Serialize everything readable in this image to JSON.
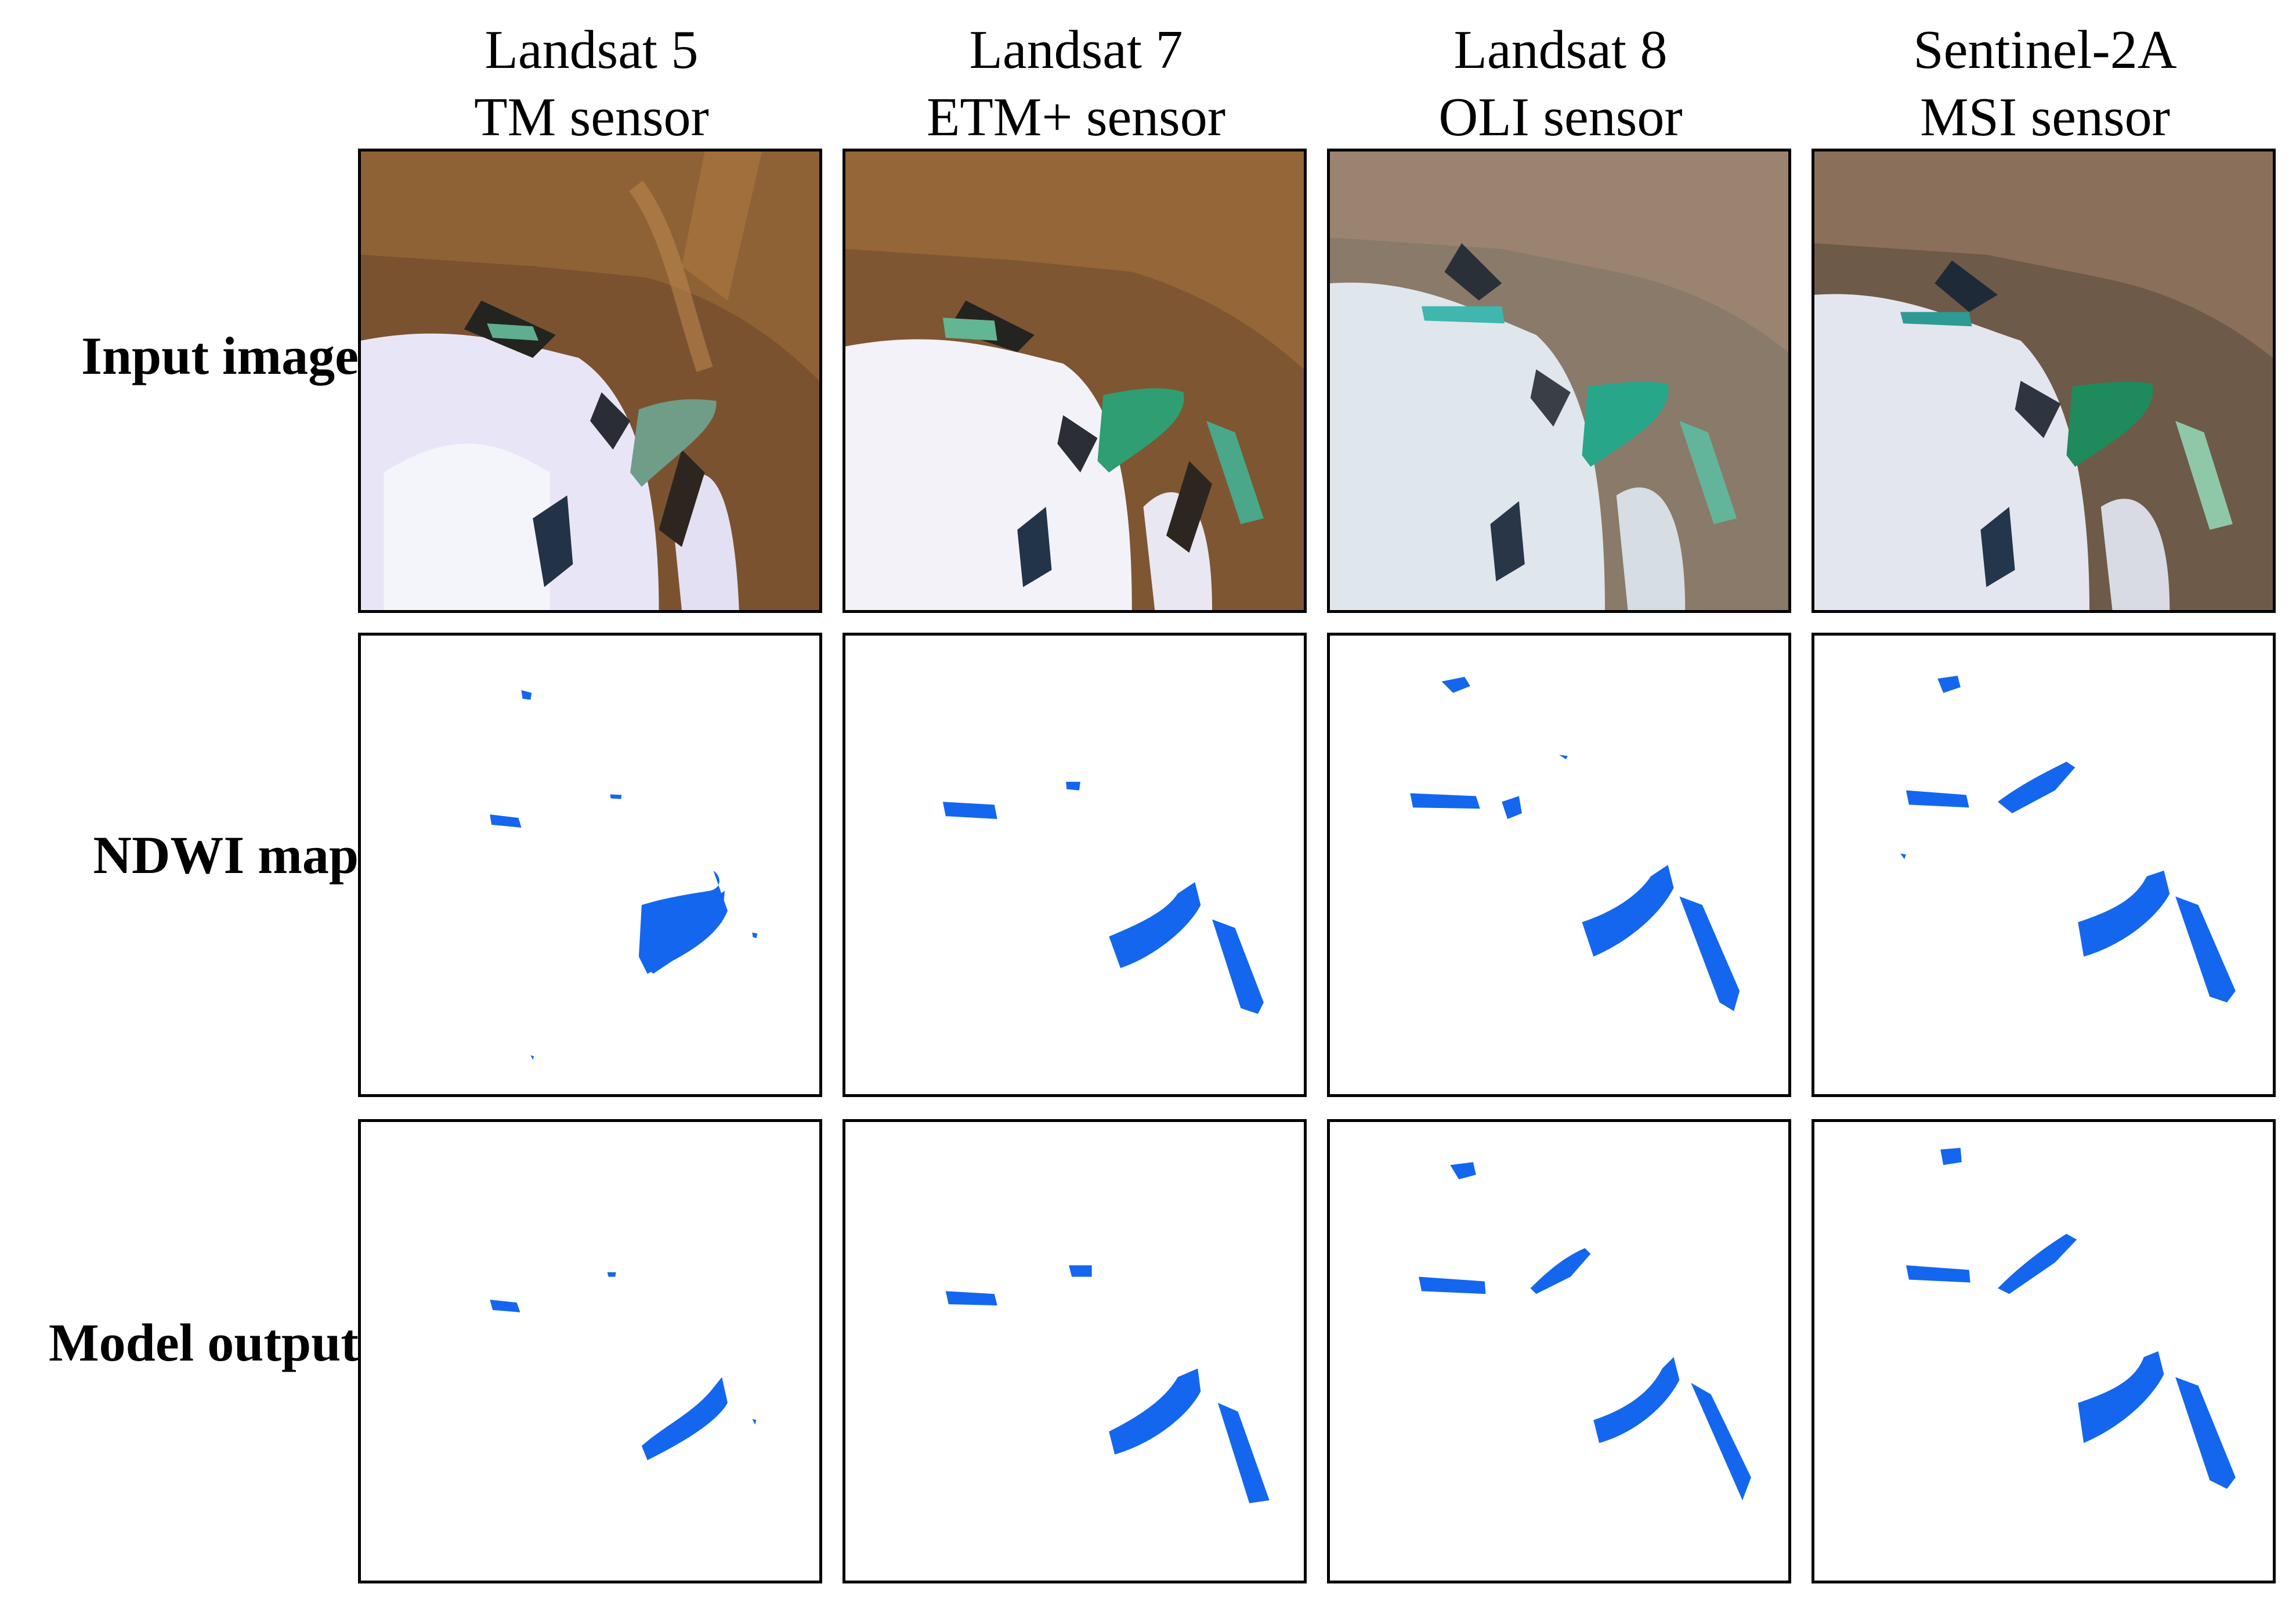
{
  "columns": [
    {
      "line1": "Landsat 5",
      "line2": "TM sensor"
    },
    {
      "line1": "Landsat 7",
      "line2": "ETM+ sensor"
    },
    {
      "line1": "Landsat 8",
      "line2": "OLI sensor"
    },
    {
      "line1": "Sentinel-2A",
      "line2": "MSI sensor"
    }
  ],
  "rows": [
    {
      "label": "Input image"
    },
    {
      "label": "NDWI map"
    },
    {
      "label": "Model output"
    }
  ],
  "colors": {
    "water_mask": "#1466ee",
    "lake_turquoise": "#3fae98",
    "snow": "#eef0f8",
    "rock_brown": "#8a5a2b"
  }
}
